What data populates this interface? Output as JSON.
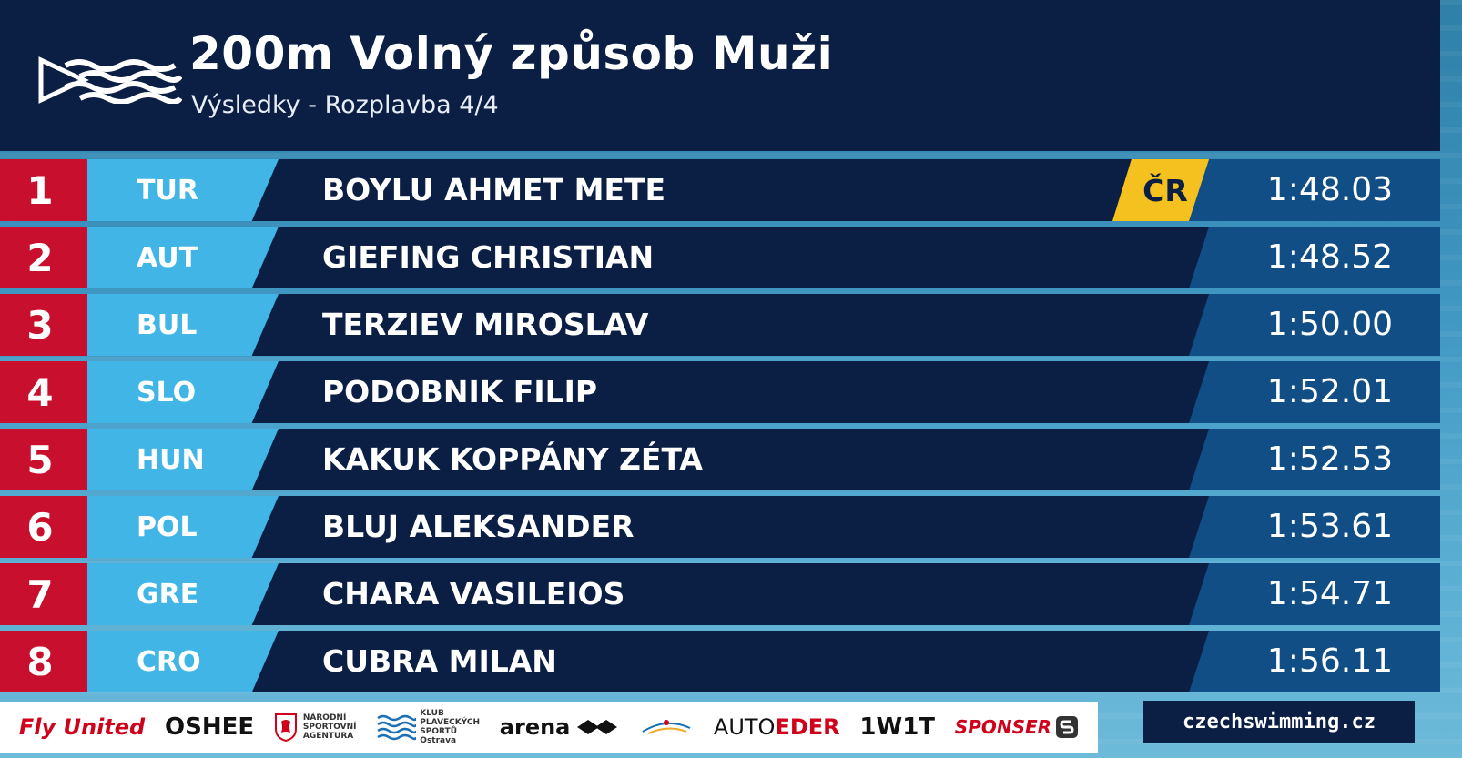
{
  "header": {
    "title": "200m Volný způsob Muži",
    "subtitle": "Výsledky - Rozplavba 4/4"
  },
  "results": [
    {
      "rank": "1",
      "nation": "TUR",
      "name": "BOYLU AHMET METE",
      "record": "ČR",
      "time": "1:48.03"
    },
    {
      "rank": "2",
      "nation": "AUT",
      "name": "GIEFING CHRISTIAN",
      "record": "",
      "time": "1:48.52"
    },
    {
      "rank": "3",
      "nation": "BUL",
      "name": "TERZIEV MIROSLAV",
      "record": "",
      "time": "1:50.00"
    },
    {
      "rank": "4",
      "nation": "SLO",
      "name": "PODOBNIK FILIP",
      "record": "",
      "time": "1:52.01"
    },
    {
      "rank": "5",
      "nation": "HUN",
      "name": "KAKUK KOPPÁNY ZÉTA",
      "record": "",
      "time": "1:52.53"
    },
    {
      "rank": "6",
      "nation": "POL",
      "name": "BLUJ ALEKSANDER",
      "record": "",
      "time": "1:53.61"
    },
    {
      "rank": "7",
      "nation": "GRE",
      "name": "CHARA VASILEIOS",
      "record": "",
      "time": "1:54.71"
    },
    {
      "rank": "8",
      "nation": "CRO",
      "name": "CUBRA MILAN",
      "record": "",
      "time": "1:56.11"
    }
  ],
  "sponsors": {
    "fly_united": "Fly United",
    "oshee": "OSHEE",
    "nsa_line1": "NÁRODNÍ",
    "nsa_line2": "SPORTOVNÍ",
    "nsa_line3": "AGENTURA",
    "kps_line1": "KLUB",
    "kps_line2": "PLAVECKÝCH",
    "kps_line3": "SPORTŮ",
    "kps_line4": "Ostrava",
    "arena": "arena",
    "auto": "AUTO",
    "eder": "EDER",
    "w1t": "1W1T",
    "sponser": "SPONSER"
  },
  "website": "czechswimming.cz",
  "colors": {
    "navy": "#0b1f45",
    "rank_red": "#c8102e",
    "nation_blue": "#41b6e6",
    "time_blue": "#114e86",
    "record_yellow": "#f5c11e"
  },
  "icons": {
    "logo": "waves-flag-logo-icon",
    "nsa": "lion-crest-icon",
    "kps": "waves-icon",
    "arena": "diamond-icon",
    "ostrava": "swoosh-icon",
    "sponser": "s-badge-icon"
  }
}
